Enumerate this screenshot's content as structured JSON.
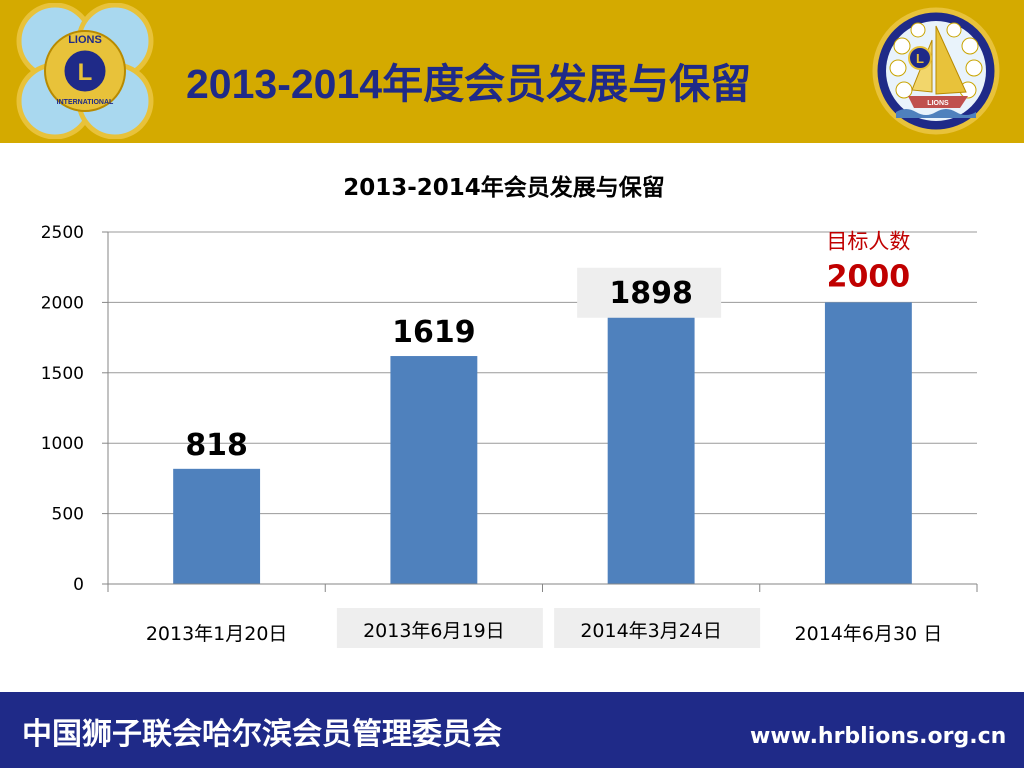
{
  "slide": {
    "title": "2013-2014年度会员发展与保留",
    "left_logo_text": "LIONS",
    "left_logo_letter": "L",
    "left_logo_bottom_text": "INTERNATIONAL",
    "right_logo_letter": "L",
    "right_logo_ship_text": "LIONS"
  },
  "footer": {
    "org": "中国狮子联会哈尔滨会员管理委员会",
    "url": "www.hrblions.org.cn"
  },
  "colors": {
    "header": "#d4aa00",
    "footer": "#1f2a88",
    "title": "#1f2a88",
    "bar": "#4f81bd",
    "target_label": "#c00000"
  },
  "chart_data": {
    "type": "bar",
    "title": "2013-2014年会员发展与保留",
    "categories": [
      "2013年1月20日",
      "2013年6月19日",
      "2014年3月24日",
      "2014年6月30 日"
    ],
    "values": [
      818,
      1619,
      1898,
      2000
    ],
    "data_labels": [
      "818",
      "1619",
      "1898",
      "2000"
    ],
    "annotation": "目标人数",
    "ylim": [
      0,
      2500
    ],
    "yticks": [
      0,
      500,
      1000,
      1500,
      2000,
      2500
    ],
    "grid": true,
    "legend": "none",
    "xlabel": "",
    "ylabel": ""
  }
}
